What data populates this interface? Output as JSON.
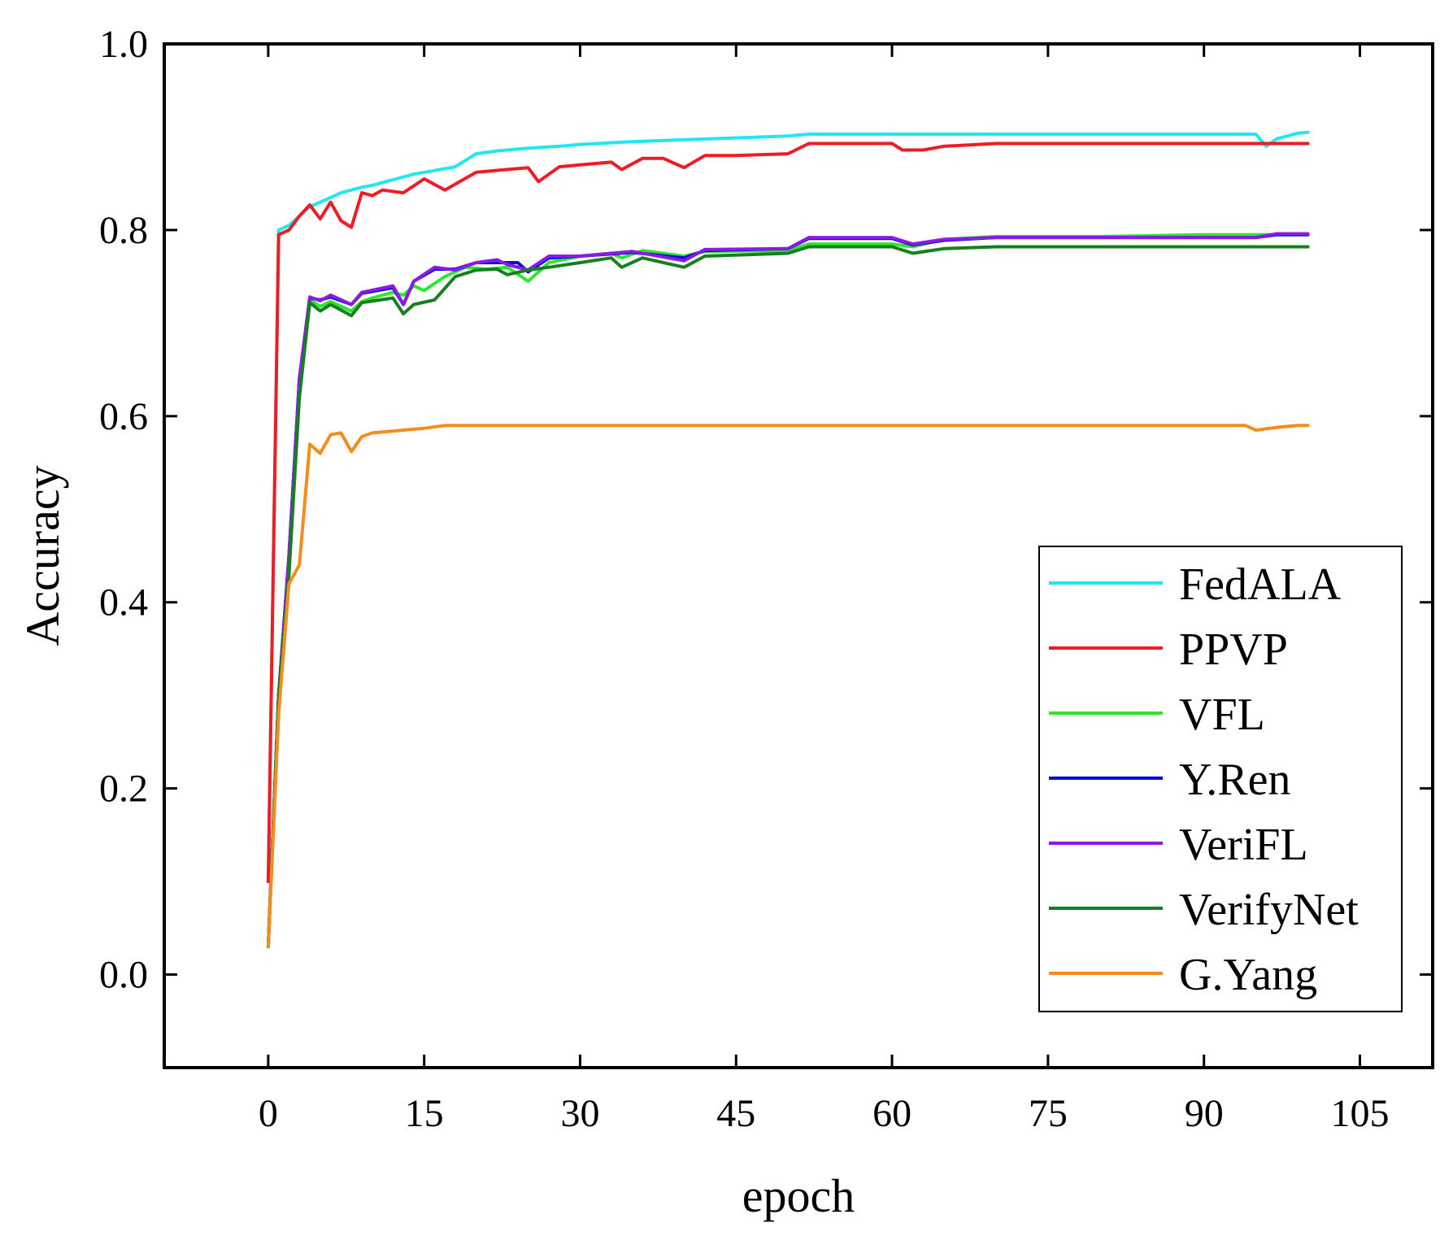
{
  "chart_data": {
    "type": "line",
    "title": "",
    "xlabel": "epoch",
    "ylabel": "Accuracy",
    "xlim": [
      -10,
      112
    ],
    "ylim": [
      -0.1,
      1.0
    ],
    "xticks": [
      0,
      15,
      30,
      45,
      60,
      75,
      90,
      105
    ],
    "yticks": [
      0.0,
      0.2,
      0.4,
      0.6,
      0.8,
      1.0
    ],
    "xtick_labels": [
      "0",
      "15",
      "30",
      "45",
      "60",
      "75",
      "90",
      "105"
    ],
    "ytick_labels": [
      "0.0",
      "0.2",
      "0.4",
      "0.6",
      "0.8",
      "1.0"
    ],
    "grid": false,
    "legend_position": "lower-right",
    "series": [
      {
        "name": "FedALA",
        "color": "#22e6f0",
        "points": [
          [
            0,
            0.1
          ],
          [
            1,
            0.8
          ],
          [
            2,
            0.805
          ],
          [
            3,
            0.815
          ],
          [
            4,
            0.825
          ],
          [
            5,
            0.83
          ],
          [
            6,
            0.835
          ],
          [
            7,
            0.84
          ],
          [
            8,
            0.843
          ],
          [
            9,
            0.846
          ],
          [
            10,
            0.848
          ],
          [
            12,
            0.854
          ],
          [
            14,
            0.86
          ],
          [
            16,
            0.864
          ],
          [
            18,
            0.868
          ],
          [
            20,
            0.882
          ],
          [
            22,
            0.885
          ],
          [
            25,
            0.888
          ],
          [
            28,
            0.89
          ],
          [
            30,
            0.892
          ],
          [
            35,
            0.895
          ],
          [
            40,
            0.897
          ],
          [
            45,
            0.899
          ],
          [
            50,
            0.901
          ],
          [
            52,
            0.903
          ],
          [
            60,
            0.903
          ],
          [
            70,
            0.903
          ],
          [
            80,
            0.903
          ],
          [
            90,
            0.903
          ],
          [
            95,
            0.903
          ],
          [
            96,
            0.89
          ],
          [
            97,
            0.898
          ],
          [
            99,
            0.904
          ],
          [
            100,
            0.905
          ]
        ]
      },
      {
        "name": "PPVP",
        "color": "#ee1c24",
        "points": [
          [
            0,
            0.1
          ],
          [
            1,
            0.795
          ],
          [
            2,
            0.8
          ],
          [
            3,
            0.815
          ],
          [
            4,
            0.827
          ],
          [
            5,
            0.812
          ],
          [
            6,
            0.83
          ],
          [
            7,
            0.81
          ],
          [
            8,
            0.803
          ],
          [
            9,
            0.84
          ],
          [
            10,
            0.837
          ],
          [
            11,
            0.843
          ],
          [
            13,
            0.84
          ],
          [
            15,
            0.855
          ],
          [
            17,
            0.843
          ],
          [
            20,
            0.862
          ],
          [
            25,
            0.867
          ],
          [
            26,
            0.852
          ],
          [
            28,
            0.868
          ],
          [
            30,
            0.87
          ],
          [
            33,
            0.873
          ],
          [
            34,
            0.865
          ],
          [
            36,
            0.877
          ],
          [
            38,
            0.877
          ],
          [
            40,
            0.867
          ],
          [
            42,
            0.88
          ],
          [
            45,
            0.88
          ],
          [
            50,
            0.882
          ],
          [
            52,
            0.893
          ],
          [
            60,
            0.893
          ],
          [
            61,
            0.886
          ],
          [
            63,
            0.886
          ],
          [
            65,
            0.89
          ],
          [
            70,
            0.893
          ],
          [
            80,
            0.893
          ],
          [
            90,
            0.893
          ],
          [
            100,
            0.893
          ]
        ]
      },
      {
        "name": "VFL",
        "color": "#2ee62e",
        "points": [
          [
            0,
            0.03
          ],
          [
            1,
            0.3
          ],
          [
            2,
            0.45
          ],
          [
            3,
            0.64
          ],
          [
            4,
            0.725
          ],
          [
            5,
            0.718
          ],
          [
            6,
            0.723
          ],
          [
            8,
            0.713
          ],
          [
            9,
            0.723
          ],
          [
            10,
            0.727
          ],
          [
            12,
            0.733
          ],
          [
            13,
            0.73
          ],
          [
            14,
            0.74
          ],
          [
            15,
            0.735
          ],
          [
            17,
            0.75
          ],
          [
            19,
            0.76
          ],
          [
            21,
            0.758
          ],
          [
            23,
            0.76
          ],
          [
            25,
            0.745
          ],
          [
            27,
            0.765
          ],
          [
            30,
            0.772
          ],
          [
            33,
            0.775
          ],
          [
            34,
            0.77
          ],
          [
            36,
            0.778
          ],
          [
            40,
            0.772
          ],
          [
            42,
            0.777
          ],
          [
            50,
            0.778
          ],
          [
            52,
            0.785
          ],
          [
            60,
            0.785
          ],
          [
            62,
            0.782
          ],
          [
            65,
            0.79
          ],
          [
            70,
            0.793
          ],
          [
            80,
            0.793
          ],
          [
            90,
            0.795
          ],
          [
            100,
            0.795
          ]
        ]
      },
      {
        "name": "Y.Ren",
        "color": "#0a0adc",
        "points": [
          [
            0,
            0.03
          ],
          [
            1,
            0.3
          ],
          [
            2,
            0.45
          ],
          [
            3,
            0.64
          ],
          [
            4,
            0.727
          ],
          [
            5,
            0.725
          ],
          [
            6,
            0.728
          ],
          [
            8,
            0.72
          ],
          [
            9,
            0.732
          ],
          [
            12,
            0.738
          ],
          [
            13,
            0.72
          ],
          [
            14,
            0.745
          ],
          [
            16,
            0.758
          ],
          [
            18,
            0.758
          ],
          [
            20,
            0.765
          ],
          [
            22,
            0.765
          ],
          [
            24,
            0.765
          ],
          [
            25,
            0.755
          ],
          [
            27,
            0.77
          ],
          [
            30,
            0.772
          ],
          [
            35,
            0.776
          ],
          [
            40,
            0.77
          ],
          [
            42,
            0.778
          ],
          [
            50,
            0.78
          ],
          [
            52,
            0.791
          ],
          [
            60,
            0.791
          ],
          [
            62,
            0.784
          ],
          [
            65,
            0.789
          ],
          [
            70,
            0.792
          ],
          [
            80,
            0.792
          ],
          [
            90,
            0.792
          ],
          [
            95,
            0.792
          ],
          [
            97,
            0.795
          ],
          [
            100,
            0.795
          ]
        ]
      },
      {
        "name": "VeriFL",
        "color": "#8c1ae6",
        "points": [
          [
            0,
            0.03
          ],
          [
            1,
            0.3
          ],
          [
            2,
            0.45
          ],
          [
            3,
            0.64
          ],
          [
            4,
            0.728
          ],
          [
            5,
            0.724
          ],
          [
            6,
            0.73
          ],
          [
            8,
            0.72
          ],
          [
            9,
            0.733
          ],
          [
            12,
            0.74
          ],
          [
            13,
            0.72
          ],
          [
            14,
            0.745
          ],
          [
            16,
            0.76
          ],
          [
            18,
            0.757
          ],
          [
            20,
            0.765
          ],
          [
            22,
            0.768
          ],
          [
            23,
            0.763
          ],
          [
            25,
            0.757
          ],
          [
            27,
            0.772
          ],
          [
            30,
            0.772
          ],
          [
            35,
            0.777
          ],
          [
            40,
            0.767
          ],
          [
            42,
            0.779
          ],
          [
            50,
            0.78
          ],
          [
            52,
            0.792
          ],
          [
            60,
            0.792
          ],
          [
            62,
            0.785
          ],
          [
            65,
            0.79
          ],
          [
            70,
            0.792
          ],
          [
            80,
            0.792
          ],
          [
            90,
            0.792
          ],
          [
            95,
            0.792
          ],
          [
            97,
            0.796
          ],
          [
            100,
            0.796
          ]
        ]
      },
      {
        "name": "VerifyNet",
        "color": "#15801e",
        "points": [
          [
            0,
            0.03
          ],
          [
            1,
            0.3
          ],
          [
            2,
            0.43
          ],
          [
            3,
            0.62
          ],
          [
            4,
            0.722
          ],
          [
            5,
            0.713
          ],
          [
            6,
            0.72
          ],
          [
            8,
            0.708
          ],
          [
            9,
            0.722
          ],
          [
            12,
            0.727
          ],
          [
            13,
            0.71
          ],
          [
            14,
            0.72
          ],
          [
            16,
            0.725
          ],
          [
            18,
            0.75
          ],
          [
            20,
            0.757
          ],
          [
            22,
            0.758
          ],
          [
            23,
            0.752
          ],
          [
            25,
            0.757
          ],
          [
            27,
            0.76
          ],
          [
            30,
            0.765
          ],
          [
            33,
            0.77
          ],
          [
            34,
            0.76
          ],
          [
            36,
            0.77
          ],
          [
            40,
            0.76
          ],
          [
            42,
            0.772
          ],
          [
            50,
            0.775
          ],
          [
            52,
            0.782
          ],
          [
            60,
            0.782
          ],
          [
            62,
            0.775
          ],
          [
            65,
            0.78
          ],
          [
            70,
            0.782
          ],
          [
            80,
            0.782
          ],
          [
            90,
            0.782
          ],
          [
            100,
            0.782
          ]
        ]
      },
      {
        "name": "G.Yang",
        "color": "#f58c1e",
        "points": [
          [
            0,
            0.03
          ],
          [
            1,
            0.28
          ],
          [
            2,
            0.42
          ],
          [
            3,
            0.44
          ],
          [
            4,
            0.57
          ],
          [
            5,
            0.56
          ],
          [
            6,
            0.58
          ],
          [
            7,
            0.582
          ],
          [
            8,
            0.562
          ],
          [
            9,
            0.578
          ],
          [
            10,
            0.582
          ],
          [
            12,
            0.584
          ],
          [
            15,
            0.587
          ],
          [
            17,
            0.59
          ],
          [
            20,
            0.59
          ],
          [
            40,
            0.59
          ],
          [
            60,
            0.59
          ],
          [
            80,
            0.59
          ],
          [
            94,
            0.59
          ],
          [
            95,
            0.585
          ],
          [
            97,
            0.588
          ],
          [
            99,
            0.59
          ],
          [
            100,
            0.59
          ]
        ]
      }
    ]
  }
}
